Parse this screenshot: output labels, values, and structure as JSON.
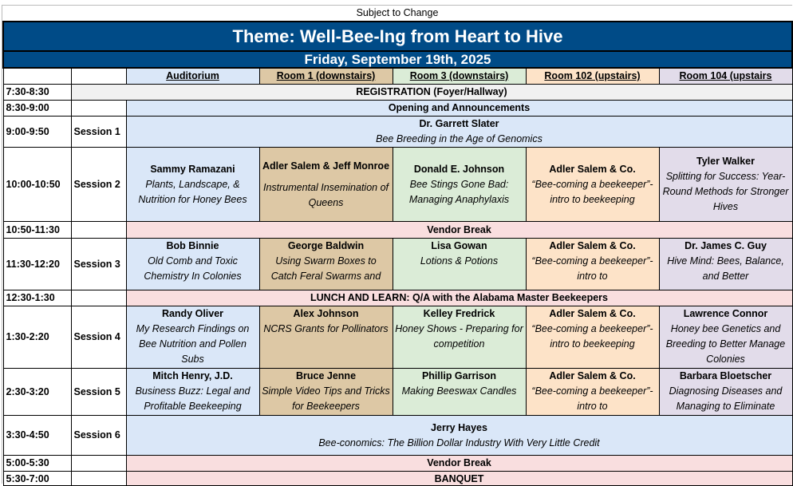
{
  "subject": "Subject to Change",
  "theme": "Theme: Well-Bee-Ing from Heart to Hive",
  "date": "Friday, September 19th, 2025",
  "rooms": [
    "Auditorium",
    "Room 1 (downstairs)",
    "Room 3 (downstairs)",
    "Room 102 (upstairs)",
    "Room 104 (upstairs"
  ],
  "colors": {
    "banner": "#004b87",
    "auditorium": "#dae7f8",
    "room1": "#ddc8a5",
    "room3": "#dbecd7",
    "room102": "#fde3c8",
    "room104": "#e2dcea",
    "break": "#f9dedf",
    "registration": "#f1f1f1"
  },
  "rows": {
    "registration": {
      "time": "7:30-8:30",
      "label": "REGISTRATION (Foyer/Hallway)"
    },
    "opening": {
      "time": "8:30-9:00",
      "label": "Opening and Announcements"
    },
    "s1": {
      "time": "9:00-9:50",
      "session": "Session 1",
      "speaker": "Dr. Garrett Slater",
      "title": "Bee Breeding in the Age of Genomics"
    },
    "s2": {
      "time": "10:00-10:50",
      "session": "Session 2",
      "talks": [
        {
          "speaker": "Sammy Ramazani",
          "title": "Plants, Landscape, & Nutrition for Honey Bees"
        },
        {
          "speaker": "Adler Salem & Jeff Monroe",
          "title": "Instrumental Insemination of Queens"
        },
        {
          "speaker": "Donald E. Johnson",
          "title": "Bee Stings Gone Bad: Managing Anaphylaxis"
        },
        {
          "speaker": "Adler Salem & Co.",
          "title": "“Bee-coming a beekeeper”- intro to beekeeping"
        },
        {
          "speaker": "Tyler Walker",
          "title": "Splitting for Success: Year-Round Methods for Stronger Hives"
        }
      ]
    },
    "vendor1": {
      "time": "10:50-11:30",
      "label": "Vendor Break"
    },
    "s3": {
      "time": "11:30-12:20",
      "session": "Session 3",
      "talks": [
        {
          "speaker": "Bob Binnie",
          "title": "Old Comb and Toxic Chemistry In  Colonies"
        },
        {
          "speaker": "George Baldwin",
          "title": "Using Swarm Boxes to Catch Feral Swarms and"
        },
        {
          "speaker": "Lisa Gowan",
          "title": "Lotions & Potions"
        },
        {
          "speaker": "Adler Salem & Co.",
          "title": "“Bee-coming a beekeeper”- intro to"
        },
        {
          "speaker": "Dr. James C. Guy",
          "title": "Hive Mind: Bees, Balance, and Better"
        }
      ]
    },
    "lunch": {
      "time": "12:30-1:30",
      "label": "LUNCH AND LEARN: Q/A with the Alabama Master Beekeepers"
    },
    "s4": {
      "time": "1:30-2:20",
      "session": "Session 4",
      "talks": [
        {
          "speaker": "Randy Oliver",
          "title": "My Research Findings on Bee Nutrition and Pollen Subs"
        },
        {
          "speaker": "Alex Johnson",
          "title": "NCRS Grants for Pollinators"
        },
        {
          "speaker": "Kelley Fredrick",
          "title": "Honey Shows - Preparing for competition"
        },
        {
          "speaker": "Adler Salem & Co.",
          "title": "“Bee-coming a beekeeper”- intro to beekeeping"
        },
        {
          "speaker": "Lawrence Connor",
          "title": "Honey bee Genetics and Breeding to Better Manage Colonies"
        }
      ]
    },
    "s5": {
      "time": "2:30-3:20",
      "session": "Session 5",
      "talks": [
        {
          "speaker": "Mitch Henry, J.D.",
          "title": "Business Buzz: Legal and Profitable Beekeeping"
        },
        {
          "speaker": "Bruce Jenne",
          "title": "Simple Video Tips and Tricks for Beekeepers"
        },
        {
          "speaker": "Phillip Garrison",
          "title": "Making Beeswax Candles"
        },
        {
          "speaker": "Adler Salem & Co.",
          "title": "“Bee-coming a beekeeper”- intro to"
        },
        {
          "speaker": "Barbara Bloetscher",
          "title": "Diagnosing Diseases and Managing to Eliminate"
        }
      ]
    },
    "s6": {
      "time": "3:30-4:50",
      "session": "Session 6",
      "speaker": "Jerry Hayes",
      "title": "Bee-conomics: The Billion Dollar Industry With Very Little Credit"
    },
    "vendor2": {
      "time": "5:00-5:30",
      "label": "Vendor Break"
    },
    "banquet": {
      "time": "5:30-7:00",
      "label": "BANQUET"
    }
  }
}
